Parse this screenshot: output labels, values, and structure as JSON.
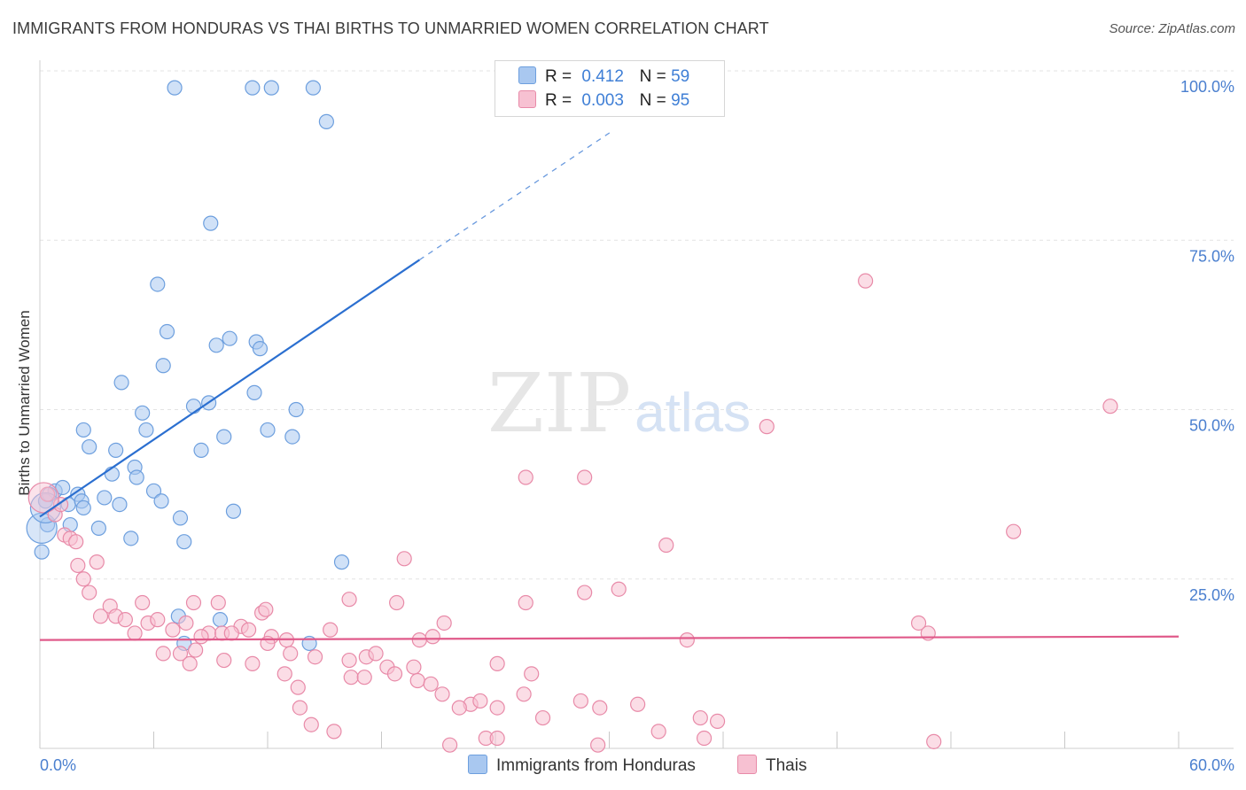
{
  "title": "IMMIGRANTS FROM HONDURAS VS THAI BIRTHS TO UNMARRIED WOMEN CORRELATION CHART",
  "source": "Source: ZipAtlas.com",
  "watermark": {
    "zip": "ZIP",
    "atlas": "atlas"
  },
  "legend_stats": [
    {
      "r_label": "R =",
      "r_value": "0.412",
      "n_label": "N =",
      "n_value": "59",
      "color": "#a9c8f0",
      "border": "#6d9fde"
    },
    {
      "r_label": "R =",
      "r_value": "0.003",
      "n_label": "N =",
      "n_value": "95",
      "color": "#f7c1d2",
      "border": "#e88aa8"
    }
  ],
  "chart_data": {
    "type": "scatter",
    "title": "IMMIGRANTS FROM HONDURAS VS THAI BIRTHS TO UNMARRIED WOMEN CORRELATION CHART",
    "xlabel": "",
    "ylabel": "Births to Unmarried Women",
    "xlim": [
      0,
      60
    ],
    "ylim": [
      0,
      100
    ],
    "x_tick_labels": [
      "0.0%",
      "60.0%"
    ],
    "y_ticks": [
      {
        "value": 100,
        "label": "100.0%"
      },
      {
        "value": 75,
        "label": "75.0%"
      },
      {
        "value": 50,
        "label": "50.0%"
      },
      {
        "value": 25,
        "label": "25.0%"
      }
    ],
    "grid": true,
    "series": [
      {
        "name": "Immigrants from Honduras",
        "color": "#a9c8f0",
        "edge": "#6d9fde",
        "trend": {
          "x0": 0,
          "y0": 34.2,
          "x1": 20.0,
          "y1": 72.1,
          "dashed_to_x": 30.2,
          "dashed_to_y": 91.2,
          "color": "#2b6fd0"
        },
        "points": [
          [
            7.1,
            97.5
          ],
          [
            11.2,
            97.5
          ],
          [
            12.2,
            97.5
          ],
          [
            14.4,
            97.5
          ],
          [
            15.1,
            92.5
          ],
          [
            9.0,
            77.5
          ],
          [
            6.2,
            68.5
          ],
          [
            6.7,
            61.5
          ],
          [
            10.0,
            60.5
          ],
          [
            11.4,
            60.0
          ],
          [
            9.3,
            59.5
          ],
          [
            11.6,
            59.0
          ],
          [
            6.5,
            56.5
          ],
          [
            4.3,
            54.0
          ],
          [
            11.3,
            52.5
          ],
          [
            8.9,
            51.0
          ],
          [
            8.1,
            50.5
          ],
          [
            5.4,
            49.5
          ],
          [
            13.5,
            50.0
          ],
          [
            2.3,
            47.0
          ],
          [
            5.6,
            47.0
          ],
          [
            12.0,
            47.0
          ],
          [
            9.7,
            46.0
          ],
          [
            13.3,
            46.0
          ],
          [
            2.6,
            44.5
          ],
          [
            4.0,
            44.0
          ],
          [
            8.5,
            44.0
          ],
          [
            5.0,
            41.5
          ],
          [
            3.8,
            40.5
          ],
          [
            5.1,
            40.0
          ],
          [
            0.8,
            38.0
          ],
          [
            1.2,
            38.5
          ],
          [
            2.0,
            37.5
          ],
          [
            3.4,
            37.0
          ],
          [
            6.0,
            38.0
          ],
          [
            0.3,
            36.5
          ],
          [
            0.5,
            37.5
          ],
          [
            1.5,
            36.0
          ],
          [
            2.2,
            36.5
          ],
          [
            4.2,
            36.0
          ],
          [
            6.4,
            36.5
          ],
          [
            2.3,
            35.5
          ],
          [
            10.2,
            35.0
          ],
          [
            7.4,
            34.0
          ],
          [
            0.4,
            33.0
          ],
          [
            1.6,
            33.0
          ],
          [
            3.1,
            32.5
          ],
          [
            4.8,
            31.0
          ],
          [
            7.6,
            30.5
          ],
          [
            0.1,
            29.0
          ],
          [
            15.9,
            27.5
          ],
          [
            7.3,
            19.5
          ],
          [
            9.5,
            19.0
          ],
          [
            14.2,
            15.5
          ],
          [
            7.6,
            15.5
          ]
        ],
        "big_points": [
          [
            0.1,
            32.5
          ],
          [
            0.3,
            35.5
          ]
        ]
      },
      {
        "name": "Thais",
        "color": "#f7c1d2",
        "edge": "#e88aa8",
        "trend": {
          "x0": 0,
          "y0": 16.0,
          "x1": 60,
          "y1": 16.5,
          "color": "#e05a8a"
        },
        "points": [
          [
            0.4,
            37.5
          ],
          [
            0.8,
            34.5
          ],
          [
            1.1,
            36.0
          ],
          [
            1.3,
            31.5
          ],
          [
            1.6,
            31.0
          ],
          [
            1.9,
            30.5
          ],
          [
            2.0,
            27.0
          ],
          [
            3.0,
            27.5
          ],
          [
            2.3,
            25.0
          ],
          [
            2.6,
            23.0
          ],
          [
            43.5,
            69.0
          ],
          [
            56.4,
            50.5
          ],
          [
            38.3,
            47.5
          ],
          [
            25.6,
            40.0
          ],
          [
            28.7,
            40.0
          ],
          [
            51.3,
            32.0
          ],
          [
            33.0,
            30.0
          ],
          [
            19.2,
            28.0
          ],
          [
            30.5,
            23.5
          ],
          [
            3.7,
            21.0
          ],
          [
            5.4,
            21.5
          ],
          [
            8.1,
            21.5
          ],
          [
            9.4,
            21.5
          ],
          [
            11.7,
            20.0
          ],
          [
            11.9,
            20.5
          ],
          [
            16.3,
            22.0
          ],
          [
            18.8,
            21.5
          ],
          [
            25.6,
            21.5
          ],
          [
            28.7,
            23.0
          ],
          [
            4.0,
            19.5
          ],
          [
            5.7,
            18.5
          ],
          [
            6.2,
            19.0
          ],
          [
            7.7,
            18.5
          ],
          [
            8.9,
            17.0
          ],
          [
            9.6,
            17.0
          ],
          [
            10.6,
            18.0
          ],
          [
            11.0,
            17.5
          ],
          [
            12.2,
            16.5
          ],
          [
            13.0,
            16.0
          ],
          [
            15.3,
            17.5
          ],
          [
            21.3,
            18.5
          ],
          [
            3.2,
            19.5
          ],
          [
            4.5,
            19.0
          ],
          [
            5.0,
            17.0
          ],
          [
            7.0,
            17.5
          ],
          [
            8.5,
            16.5
          ],
          [
            10.1,
            17.0
          ],
          [
            46.3,
            18.5
          ],
          [
            34.1,
            16.0
          ],
          [
            46.8,
            17.0
          ],
          [
            20.0,
            16.0
          ],
          [
            20.7,
            16.5
          ],
          [
            6.5,
            14.0
          ],
          [
            7.4,
            14.0
          ],
          [
            8.2,
            14.5
          ],
          [
            9.7,
            13.0
          ],
          [
            11.2,
            12.5
          ],
          [
            12.0,
            15.5
          ],
          [
            13.2,
            14.0
          ],
          [
            14.5,
            13.5
          ],
          [
            16.3,
            13.0
          ],
          [
            17.2,
            13.5
          ],
          [
            17.7,
            14.0
          ],
          [
            18.3,
            12.0
          ],
          [
            19.7,
            12.0
          ],
          [
            24.1,
            12.5
          ],
          [
            25.9,
            11.0
          ],
          [
            7.9,
            12.5
          ],
          [
            12.9,
            11.0
          ],
          [
            16.4,
            10.5
          ],
          [
            17.1,
            10.5
          ],
          [
            18.7,
            11.0
          ],
          [
            19.9,
            10.0
          ],
          [
            20.6,
            9.5
          ],
          [
            21.2,
            8.0
          ],
          [
            22.7,
            6.5
          ],
          [
            23.2,
            7.0
          ],
          [
            13.6,
            9.0
          ],
          [
            25.5,
            8.0
          ],
          [
            24.1,
            6.0
          ],
          [
            22.1,
            6.0
          ],
          [
            28.5,
            7.0
          ],
          [
            29.5,
            6.0
          ],
          [
            31.5,
            6.5
          ],
          [
            13.7,
            6.0
          ],
          [
            14.3,
            3.5
          ],
          [
            15.5,
            2.5
          ],
          [
            26.5,
            4.5
          ],
          [
            32.6,
            2.5
          ],
          [
            34.8,
            4.5
          ],
          [
            35.7,
            4.0
          ],
          [
            23.5,
            1.5
          ],
          [
            24.1,
            1.5
          ],
          [
            21.6,
            0.5
          ],
          [
            29.4,
            0.5
          ],
          [
            35.0,
            1.5
          ],
          [
            47.1,
            1.0
          ]
        ],
        "big_points": [
          [
            0.2,
            37.0
          ]
        ]
      }
    ]
  }
}
